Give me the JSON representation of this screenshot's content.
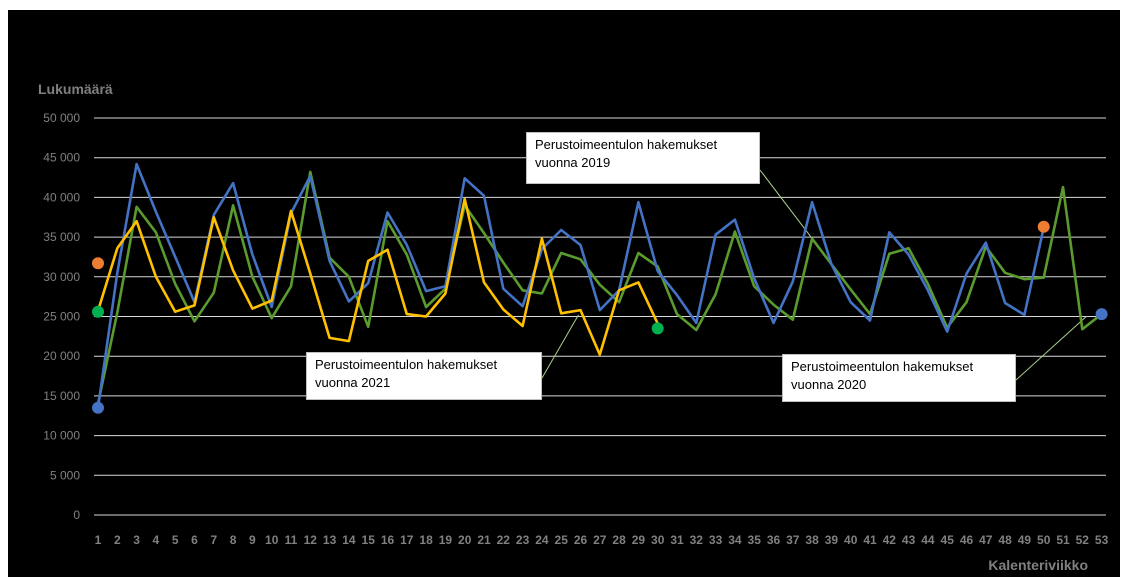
{
  "chart_data": {
    "type": "line",
    "ylabel": "Lukumäärä",
    "xlabel": "Kalenteriviikko",
    "ylim": [
      0,
      50000
    ],
    "yticks": [
      0,
      5000,
      10000,
      15000,
      20000,
      25000,
      30000,
      35000,
      40000,
      45000,
      50000
    ],
    "ytick_labels": [
      "0",
      "5 000",
      "10 000",
      "15 000",
      "20 000",
      "25 000",
      "30 000",
      "35 000",
      "40 000",
      "45 000",
      "50 000"
    ],
    "x": [
      1,
      2,
      3,
      4,
      5,
      6,
      7,
      8,
      9,
      10,
      11,
      12,
      13,
      14,
      15,
      16,
      17,
      18,
      19,
      20,
      21,
      22,
      23,
      24,
      25,
      26,
      27,
      28,
      29,
      30,
      31,
      32,
      33,
      34,
      35,
      36,
      37,
      38,
      39,
      40,
      41,
      42,
      43,
      44,
      45,
      46,
      47,
      48,
      49,
      50,
      51,
      52,
      53
    ],
    "grid": "horizontal",
    "series": [
      {
        "name": "Perustoimeentulon hakemukset vuonna 2019",
        "color": "#4472c4",
        "values": [
          13500,
          30500,
          44200,
          38200,
          32500,
          26800,
          37800,
          41800,
          32800,
          26200,
          38000,
          42700,
          32000,
          26900,
          29200,
          38100,
          34000,
          28200,
          28800,
          42400,
          40200,
          28500,
          26300,
          33500,
          35900,
          34000,
          25800,
          28300,
          39400,
          30700,
          27700,
          24200,
          35300,
          37200,
          29800,
          24200,
          29400,
          39400,
          31600,
          26800,
          24500,
          35600,
          32800,
          28300,
          23100,
          30400,
          34300,
          26700,
          25200,
          36200,
          null,
          null,
          null
        ],
        "end_marker": 25300
      },
      {
        "name": "Perustoimeentulon hakemukset vuonna 2020",
        "color": "#5b9b2e",
        "values": [
          14000,
          25500,
          38800,
          35600,
          29100,
          24400,
          28000,
          39000,
          30000,
          24800,
          28800,
          43200,
          32400,
          30000,
          23700,
          37000,
          32800,
          26200,
          28500,
          39000,
          35500,
          31800,
          28300,
          27900,
          33000,
          32200,
          29000,
          26800,
          33000,
          31300,
          25300,
          23300,
          27800,
          35700,
          28800,
          26500,
          24600,
          34800,
          31600,
          28400,
          25300,
          32900,
          33600,
          29100,
          23600,
          26800,
          33800,
          30500,
          29700,
          29900,
          41300,
          23400,
          25300
        ]
      },
      {
        "name": "Perustoimeentulon hakemukset vuonna 2021",
        "color": "#ffc000",
        "values": [
          25700,
          33600,
          37000,
          30000,
          25600,
          26400,
          37500,
          30800,
          26000,
          27000,
          38300,
          30400,
          22300,
          21900,
          32000,
          33400,
          25300,
          25000,
          27900,
          39800,
          29300,
          25900,
          23800,
          34800,
          25400,
          25800,
          20200,
          28300,
          29300,
          24100,
          null,
          null,
          null,
          null,
          null,
          null,
          null,
          null,
          null,
          null,
          null,
          null,
          null,
          null,
          null,
          null,
          null,
          null,
          null,
          null,
          null,
          null,
          null
        ],
        "end_marker": 23500
      }
    ],
    "extra_markers": [
      {
        "x": 1,
        "y": 31700,
        "color": "#ed7d31"
      },
      {
        "x": 1,
        "y": 25600,
        "color": "#00b050"
      },
      {
        "x": 50,
        "y": 36300,
        "color": "#ed7d31"
      }
    ],
    "annotations": {
      "a2019_line1": "Perustoimeentulon hakemukset",
      "a2019_line2": "vuonna 2019",
      "a2021_line1": "Perustoimeentulon hakemukset",
      "a2021_line2": "vuonna 2021",
      "a2020_line1": "Perustoimeentulon hakemukset",
      "a2020_line2": "vuonna 2020"
    }
  }
}
